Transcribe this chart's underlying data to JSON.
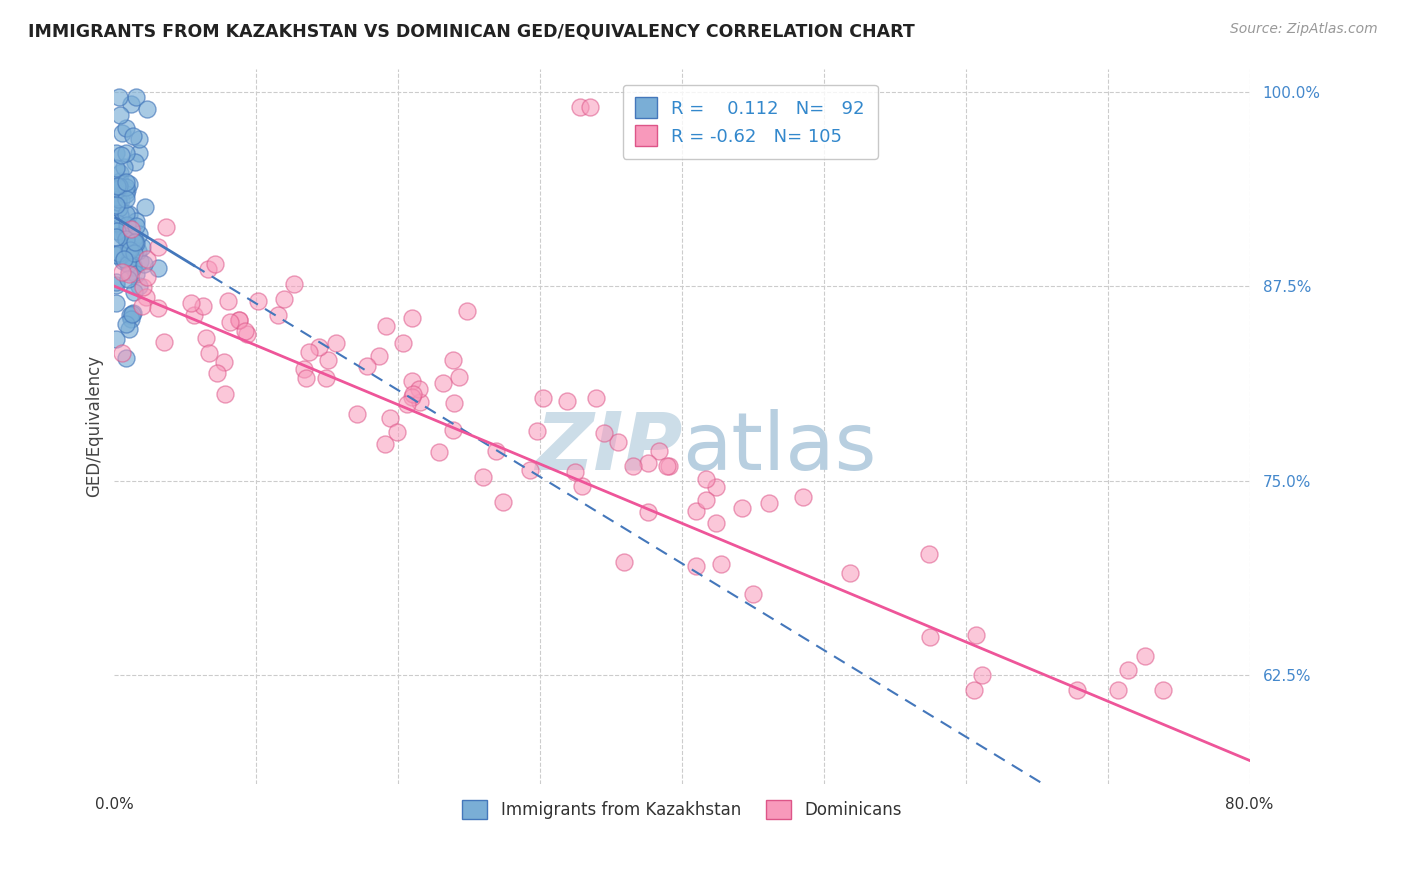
{
  "title": "IMMIGRANTS FROM KAZAKHSTAN VS DOMINICAN GED/EQUIVALENCY CORRELATION CHART",
  "source": "Source: ZipAtlas.com",
  "ylabel": "GED/Equivalency",
  "legend_label1": "Immigrants from Kazakhstan",
  "legend_label2": "Dominicans",
  "r1": 0.112,
  "n1": 92,
  "r2": -0.62,
  "n2": 105,
  "xlim": [
    0.0,
    0.8
  ],
  "ylim": [
    0.555,
    1.015
  ],
  "yticks": [
    0.625,
    0.75,
    0.875,
    1.0
  ],
  "color_kaz": "#7aaed6",
  "color_kaz_edge": "#4477bb",
  "color_dom": "#f899bb",
  "color_dom_edge": "#dd5588",
  "color_trend_kaz": "#4477bb",
  "color_trend_dom": "#ee5599",
  "background_color": "#ffffff",
  "grid_color": "#cccccc",
  "watermark_color": "#ccdde8"
}
